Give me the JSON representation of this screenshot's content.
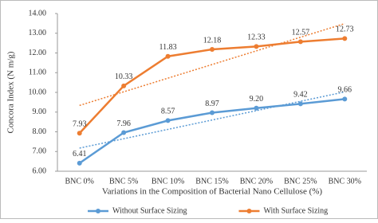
{
  "chart_data": {
    "type": "line",
    "x_label": "Variations in the Composition of Bacterial Nano Cellulose (%)",
    "y_label": "Concora Index (N m/g)",
    "categories": [
      "BNC 0%",
      "BNC 5%",
      "BNC 10%",
      "BNC 15%",
      "BNC 20%",
      "BNC 25%",
      "BNC 30%"
    ],
    "series": [
      {
        "name": "Without Surface Sizing",
        "color": "#5b9bd5",
        "values": [
          6.41,
          7.96,
          8.57,
          8.97,
          9.2,
          9.42,
          9.66
        ],
        "value_labels": [
          "6.41",
          "7.96",
          "8.57",
          "8.97",
          "9.20",
          "9.42",
          "9.66"
        ]
      },
      {
        "name": "With Surface Sizing",
        "color": "#ed7d31",
        "values": [
          7.93,
          10.33,
          11.83,
          12.18,
          12.33,
          12.57,
          12.73
        ],
        "value_labels": [
          "7.93",
          "10.33",
          "11.83",
          "12.18",
          "12.33",
          "12.57",
          "12.73"
        ]
      }
    ],
    "ylim": [
      6,
      14
    ],
    "yticks": [
      {
        "value": 6,
        "label": "6.00"
      },
      {
        "value": 7,
        "label": "7.00"
      },
      {
        "value": 8,
        "label": "8.00"
      },
      {
        "value": 9,
        "label": "9.00"
      },
      {
        "value": 10,
        "label": "10.00"
      },
      {
        "value": 11,
        "label": "11.00"
      },
      {
        "value": 12,
        "label": "12.00"
      },
      {
        "value": 13,
        "label": "13.00"
      },
      {
        "value": 14,
        "label": "14.00"
      }
    ],
    "trendline": true,
    "legend": "bottom"
  }
}
